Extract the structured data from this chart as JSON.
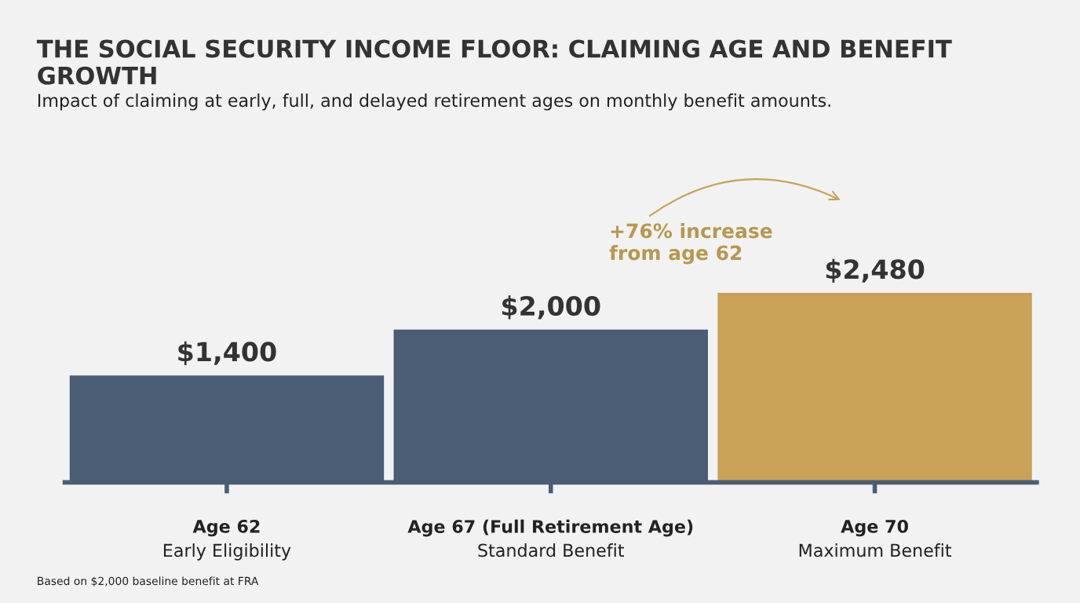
{
  "chart_data": {
    "type": "bar",
    "title": "THE SOCIAL SECURITY INCOME FLOOR: CLAIMING AGE AND BENEFIT GROWTH",
    "subtitle": "Impact of claiming at early, full, and delayed retirement ages on monthly benefit amounts.",
    "categories": [
      "Age 62\nEarly Eligibility",
      "Age 67 (Full Retirement Age)\nStandard Benefit",
      "Age 70\nMaximum Benefit"
    ],
    "values": [
      1400,
      2000,
      2480
    ],
    "colors": [
      "#4a5d75",
      "#4a5d75",
      "#c9a257"
    ],
    "value_labels": [
      "$1,400",
      "$2,000",
      "$2,480"
    ],
    "annotations": [
      "+76% increase\nfrom age 62",
      "Based on $2,000 baseline benefit at FRA"
    ],
    "grid": false,
    "legend": false
  }
}
